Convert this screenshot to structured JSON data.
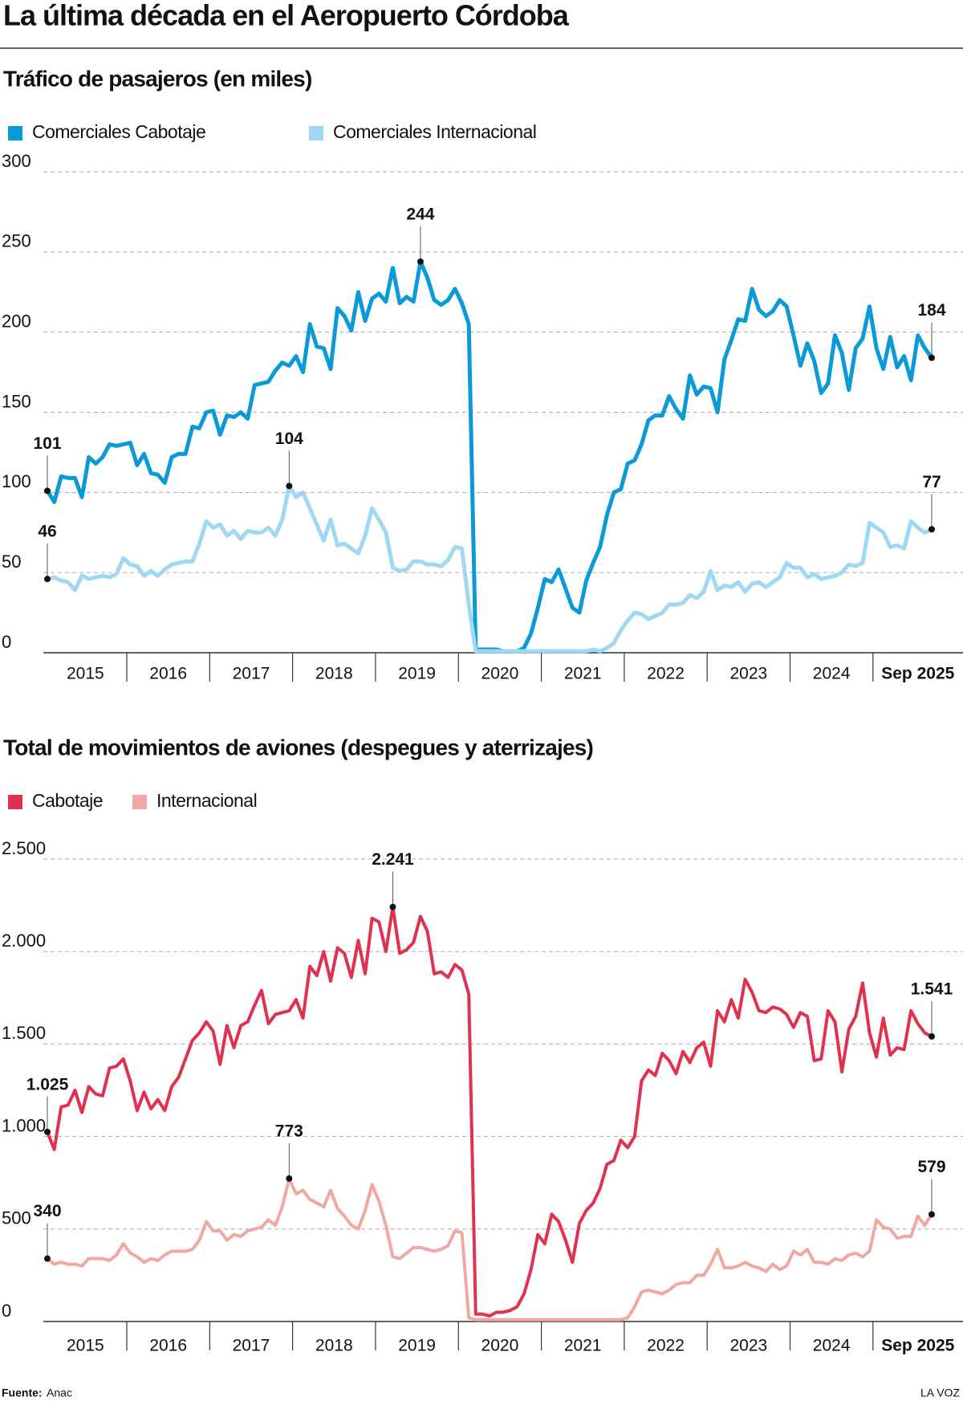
{
  "title": "La última década en el Aeropuerto Córdoba",
  "chart_data": [
    {
      "type": "line",
      "title": "Tráfico de pasajeros (en miles)",
      "x_labels": [
        "2015",
        "2016",
        "2017",
        "2018",
        "2019",
        "2020",
        "2021",
        "2022",
        "2023",
        "2024",
        "Sep 2025"
      ],
      "ylim": [
        0,
        300
      ],
      "yticks": [
        0,
        50,
        100,
        150,
        200,
        250,
        300
      ],
      "grid": true,
      "series": [
        {
          "name": "Comerciales Cabotaje",
          "color": "#0a9ad8",
          "annotations": [
            101,
            244,
            184
          ],
          "values": [
            101,
            94,
            110,
            109,
            109,
            97,
            122,
            118,
            122,
            130,
            129,
            130,
            131,
            117,
            124,
            112,
            111,
            106,
            122,
            124,
            124,
            141,
            140,
            150,
            151,
            136,
            148,
            147,
            150,
            146,
            167,
            168,
            169,
            176,
            181,
            179,
            185,
            175,
            205,
            191,
            190,
            177,
            215,
            210,
            201,
            225,
            207,
            221,
            224,
            219,
            240,
            218,
            222,
            219,
            244,
            234,
            220,
            217,
            220,
            227,
            218,
            205,
            2,
            2,
            2,
            2,
            1,
            1,
            1,
            3,
            12,
            28,
            46,
            44,
            52,
            40,
            28,
            25,
            45,
            56,
            66,
            86,
            100,
            102,
            118,
            120,
            130,
            145,
            148,
            148,
            160,
            152,
            146,
            173,
            161,
            166,
            165,
            150,
            183,
            195,
            208,
            207,
            227,
            214,
            210,
            213,
            220,
            216,
            198,
            179,
            193,
            182,
            162,
            168,
            198,
            187,
            164,
            190,
            196,
            216,
            190,
            177,
            197,
            178,
            185,
            170,
            198,
            190,
            184
          ]
        },
        {
          "name": "Comerciales Internacional",
          "color": "#9fd8f2",
          "annotations": [
            46,
            104,
            77
          ],
          "values": [
            46,
            47,
            45,
            44,
            39,
            48,
            46,
            47,
            48,
            47,
            49,
            59,
            55,
            54,
            48,
            51,
            48,
            52,
            55,
            56,
            57,
            57,
            68,
            82,
            78,
            80,
            73,
            76,
            71,
            76,
            75,
            75,
            78,
            73,
            83,
            104,
            97,
            100,
            90,
            80,
            70,
            83,
            67,
            68,
            65,
            62,
            73,
            90,
            83,
            75,
            53,
            51,
            52,
            57,
            57,
            55,
            55,
            54,
            58,
            66,
            65,
            30,
            1,
            1,
            1,
            1,
            1,
            1,
            1,
            1,
            1,
            1,
            1,
            1,
            1,
            1,
            1,
            1,
            1,
            2,
            1,
            3,
            6,
            14,
            20,
            25,
            24,
            21,
            23,
            25,
            30,
            30,
            31,
            36,
            34,
            38,
            51,
            39,
            42,
            41,
            44,
            38,
            43,
            44,
            41,
            44,
            47,
            56,
            53,
            53,
            47,
            49,
            46,
            47,
            48,
            50,
            55,
            54,
            56,
            81,
            78,
            75,
            66,
            67,
            65,
            82,
            78,
            75,
            77
          ]
        }
      ]
    },
    {
      "type": "line",
      "title": "Total de movimientos de aviones (despegues y aterrizajes)",
      "x_labels": [
        "2015",
        "2016",
        "2017",
        "2018",
        "2019",
        "2020",
        "2021",
        "2022",
        "2023",
        "2024",
        "Sep 2025"
      ],
      "ylim": [
        0,
        2500
      ],
      "yticks": [
        0,
        500,
        {
          "value": 1000,
          "label": "1.000"
        },
        {
          "value": 1500,
          "label": "1.500"
        },
        {
          "value": 2000,
          "label": "2.000"
        },
        {
          "value": 2500,
          "label": "2.500"
        }
      ],
      "grid": true,
      "series": [
        {
          "name": "Cabotaje",
          "color": "#e0314f",
          "annotations": [
            {
              "value": 1025,
              "label": "1.025"
            },
            {
              "value": 2241,
              "label": "2.241"
            },
            {
              "value": 1541,
              "label": "1.541"
            }
          ],
          "values": [
            1025,
            930,
            1160,
            1170,
            1250,
            1130,
            1270,
            1230,
            1220,
            1370,
            1380,
            1420,
            1300,
            1140,
            1240,
            1150,
            1200,
            1140,
            1270,
            1320,
            1420,
            1520,
            1560,
            1620,
            1570,
            1390,
            1600,
            1480,
            1600,
            1620,
            1710,
            1790,
            1610,
            1660,
            1670,
            1680,
            1740,
            1640,
            1920,
            1870,
            2000,
            1840,
            2020,
            1990,
            1860,
            2060,
            1880,
            2180,
            2160,
            2000,
            2241,
            1990,
            2010,
            2050,
            2190,
            2110,
            1880,
            1890,
            1860,
            1930,
            1900,
            1770,
            40,
            40,
            30,
            50,
            50,
            60,
            80,
            150,
            280,
            470,
            420,
            580,
            540,
            440,
            320,
            530,
            600,
            640,
            720,
            850,
            870,
            980,
            940,
            1000,
            1300,
            1360,
            1330,
            1450,
            1410,
            1340,
            1460,
            1400,
            1480,
            1510,
            1380,
            1680,
            1620,
            1740,
            1640,
            1850,
            1780,
            1680,
            1670,
            1700,
            1690,
            1660,
            1590,
            1670,
            1650,
            1410,
            1420,
            1680,
            1620,
            1350,
            1580,
            1650,
            1830,
            1560,
            1430,
            1640,
            1440,
            1480,
            1470,
            1680,
            1610,
            1560,
            1541
          ]
        },
        {
          "name": "Internacional",
          "color": "#f0a8a2",
          "annotations": [
            340,
            773,
            579
          ],
          "values": [
            340,
            310,
            320,
            310,
            310,
            300,
            340,
            340,
            340,
            330,
            360,
            420,
            370,
            350,
            320,
            340,
            330,
            360,
            380,
            380,
            380,
            390,
            440,
            540,
            490,
            490,
            440,
            470,
            460,
            490,
            500,
            510,
            550,
            520,
            620,
            773,
            690,
            710,
            660,
            640,
            620,
            710,
            610,
            570,
            520,
            500,
            600,
            740,
            650,
            520,
            350,
            340,
            370,
            400,
            400,
            390,
            380,
            390,
            410,
            490,
            480,
            20,
            10,
            10,
            10,
            10,
            10,
            10,
            10,
            10,
            10,
            10,
            10,
            10,
            10,
            10,
            10,
            10,
            10,
            10,
            10,
            10,
            10,
            10,
            20,
            80,
            160,
            170,
            160,
            150,
            170,
            200,
            210,
            210,
            250,
            250,
            310,
            390,
            290,
            290,
            300,
            320,
            300,
            290,
            270,
            310,
            280,
            300,
            380,
            360,
            390,
            320,
            320,
            310,
            340,
            330,
            360,
            370,
            350,
            380,
            550,
            510,
            500,
            450,
            460,
            460,
            570,
            520,
            579
          ]
        }
      ]
    }
  ],
  "footer": {
    "source_label": "Fuente:",
    "source": "Anac",
    "brand": "LA VOZ"
  }
}
